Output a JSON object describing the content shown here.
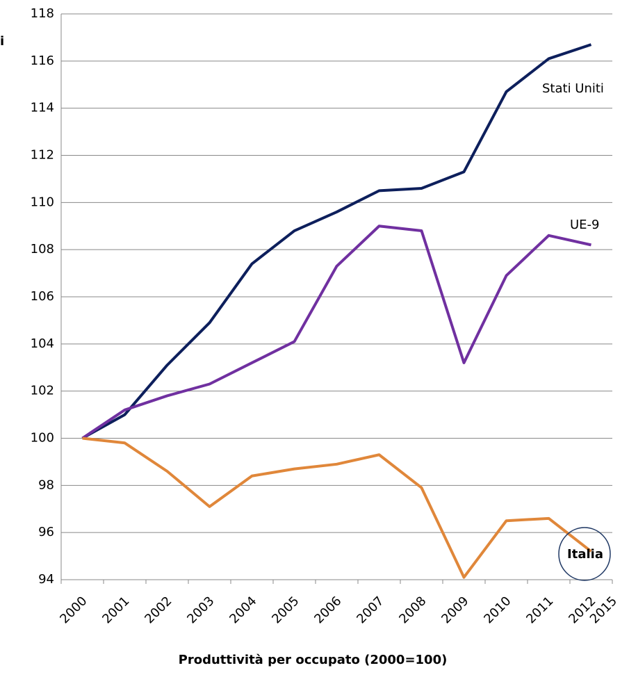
{
  "chart_data": {
    "type": "line",
    "xlabel": "Produttività per occupato (2000=100)",
    "ylabel": "i",
    "categories": [
      "2000",
      "2001",
      "2002",
      "2003",
      "2004",
      "2005",
      "2006",
      "2007",
      "2008",
      "2009",
      "2010",
      "2011",
      "2012",
      "2015"
    ],
    "series": [
      {
        "name": "Stati Uniti",
        "color": "#0d1f5c",
        "values": [
          100,
          101.0,
          103.1,
          104.9,
          107.4,
          108.8,
          109.6,
          110.5,
          110.6,
          111.3,
          114.7,
          116.1,
          116.7,
          null
        ]
      },
      {
        "name": "UE-9",
        "color": "#7030a0",
        "values": [
          100,
          101.2,
          101.8,
          102.3,
          103.2,
          104.1,
          107.3,
          109.0,
          108.8,
          103.2,
          106.9,
          108.6,
          108.2,
          null
        ]
      },
      {
        "name": "Italia",
        "color": "#e0873a",
        "values": [
          100,
          99.8,
          98.6,
          97.1,
          98.4,
          98.7,
          98.9,
          99.3,
          97.9,
          94.1,
          96.5,
          96.6,
          95.2,
          null
        ]
      }
    ],
    "ylim": [
      94,
      118
    ],
    "yticks": [
      94,
      96,
      98,
      100,
      102,
      104,
      106,
      108,
      110,
      112,
      114,
      116,
      118
    ],
    "grid": true
  }
}
